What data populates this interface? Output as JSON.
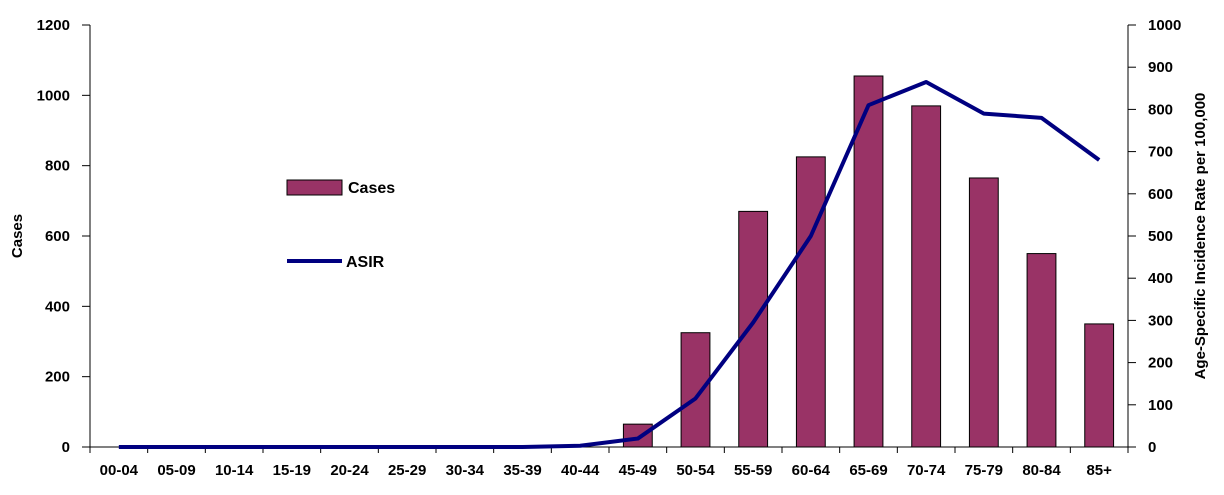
{
  "chart_data": {
    "type": "bar",
    "categories": [
      "00-04",
      "05-09",
      "10-14",
      "15-19",
      "20-24",
      "25-29",
      "30-34",
      "35-39",
      "40-44",
      "45-49",
      "50-54",
      "55-59",
      "60-64",
      "65-69",
      "70-74",
      "75-79",
      "80-84",
      "85+"
    ],
    "series": [
      {
        "name": "Cases",
        "type": "bar",
        "axis": "left",
        "color": "#993366",
        "values": [
          0,
          0,
          0,
          0,
          0,
          0,
          0,
          0,
          0,
          65,
          325,
          670,
          825,
          1055,
          970,
          765,
          550,
          350
        ]
      },
      {
        "name": "ASIR",
        "type": "line",
        "axis": "right",
        "color": "#000080",
        "values": [
          0,
          0,
          0,
          0,
          0,
          0,
          0,
          0,
          3,
          20,
          115,
          295,
          500,
          810,
          865,
          790,
          780,
          680
        ]
      }
    ],
    "ylabel": "Cases",
    "y2label": "Age-Specific Incidence Rate per 100,000",
    "ylim": [
      0,
      1200
    ],
    "y2lim": [
      0,
      1000
    ],
    "yticks": [
      0,
      200,
      400,
      600,
      800,
      1000,
      1200
    ],
    "y2ticks": [
      0,
      100,
      200,
      300,
      400,
      500,
      600,
      700,
      800,
      900,
      1000
    ],
    "grid": false,
    "legend_placement": "left-center"
  }
}
